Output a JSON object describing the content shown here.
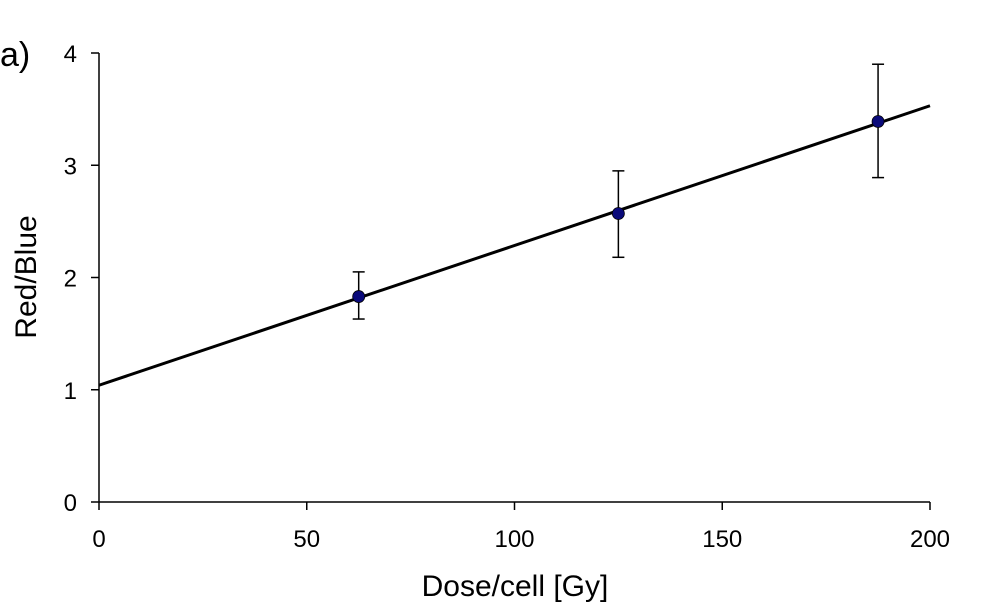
{
  "panel_label": "a)",
  "chart_data": {
    "type": "scatter",
    "xlabel": "Dose/cell [Gy]",
    "ylabel": "Red/Blue",
    "xlim": [
      0,
      200
    ],
    "ylim": [
      0,
      4
    ],
    "xticks": [
      0,
      50,
      100,
      150,
      200
    ],
    "yticks": [
      0,
      1,
      2,
      3,
      4
    ],
    "grid": false,
    "series": [
      {
        "points": [
          {
            "x": 62.5,
            "y": 1.83,
            "err_low": 1.63,
            "err_high": 2.05
          },
          {
            "x": 125,
            "y": 2.57,
            "err_low": 2.18,
            "err_high": 2.95
          },
          {
            "x": 187.5,
            "y": 3.39,
            "err_low": 2.89,
            "err_high": 3.9
          }
        ],
        "color": "#0a0a7a"
      }
    ],
    "fit_line": {
      "y_at_xmin": 1.04,
      "y_at_xmax": 3.53,
      "color": "#000000"
    }
  }
}
